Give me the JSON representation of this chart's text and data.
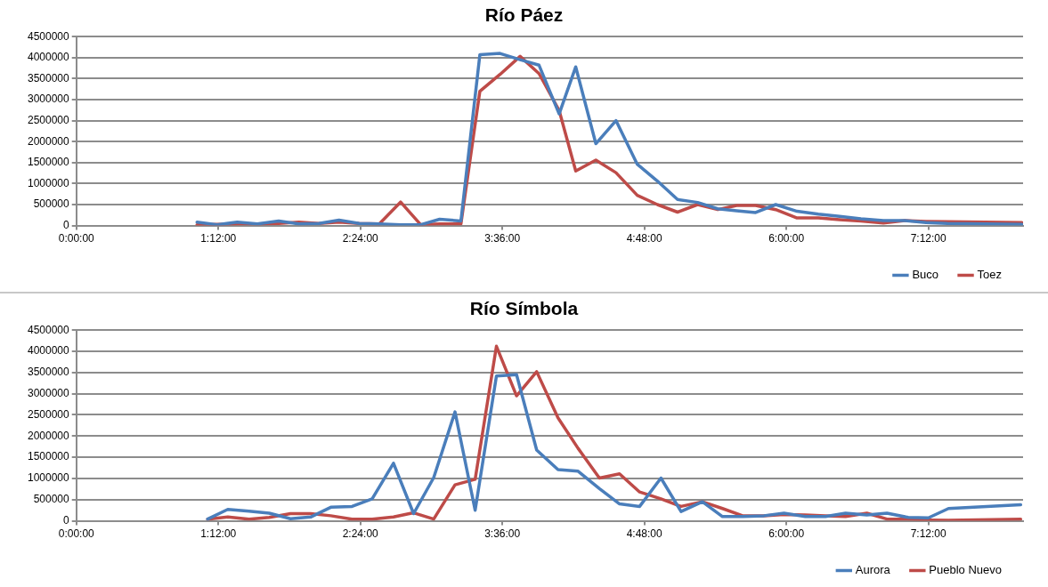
{
  "chart_data": [
    {
      "type": "line",
      "title": "Río Páez",
      "x": [
        1.02,
        1.19,
        1.36,
        1.53,
        1.71,
        1.88,
        2.05,
        2.22,
        2.39,
        2.56,
        2.74,
        2.91,
        3.07,
        3.25,
        3.41,
        3.58,
        3.75,
        3.91,
        4.08,
        4.22,
        4.39,
        4.56,
        4.74,
        4.91,
        5.08,
        5.25,
        5.42,
        5.58,
        5.74,
        5.91,
        6.09,
        6.27,
        6.45,
        6.63,
        6.82,
        7.0,
        7.18,
        7.36,
        7.99
      ],
      "series": [
        {
          "name": "Buco",
          "color": "#4a7ebb",
          "values": [
            80000,
            20000,
            80000,
            40000,
            110000,
            40000,
            50000,
            130000,
            50000,
            40000,
            20000,
            20000,
            150000,
            110000,
            4070000,
            4100000,
            3950000,
            3820000,
            2660000,
            3780000,
            1950000,
            2500000,
            1460000,
            1060000,
            620000,
            550000,
            400000,
            350000,
            310000,
            500000,
            340000,
            270000,
            220000,
            160000,
            120000,
            120000,
            70000,
            50000,
            30000
          ]
        },
        {
          "name": "Toez",
          "color": "#be4b48",
          "values": [
            20000,
            30000,
            40000,
            40000,
            50000,
            80000,
            50000,
            80000,
            50000,
            40000,
            560000,
            20000,
            40000,
            40000,
            3200000,
            3600000,
            4030000,
            3620000,
            2740000,
            1300000,
            1560000,
            1260000,
            720000,
            500000,
            320000,
            500000,
            380000,
            480000,
            480000,
            380000,
            180000,
            180000,
            140000,
            110000,
            60000,
            120000,
            100000,
            90000,
            70000
          ]
        }
      ],
      "xlim": [
        0,
        8
      ],
      "xticks": [
        {
          "value": 0,
          "label": "0:00:00"
        },
        {
          "value": 1.2,
          "label": "1:12:00"
        },
        {
          "value": 2.4,
          "label": "2:24:00"
        },
        {
          "value": 3.6,
          "label": "3:36:00"
        },
        {
          "value": 4.8,
          "label": "4:48:00"
        },
        {
          "value": 6,
          "label": "6:00:00"
        },
        {
          "value": 7.2,
          "label": "7:12:00"
        }
      ],
      "ylim": [
        0,
        4500000
      ],
      "yticks": [
        0,
        500000,
        1000000,
        1500000,
        2000000,
        2500000,
        3000000,
        3500000,
        4000000,
        4500000
      ],
      "grid": "y",
      "legend": "bottom right"
    },
    {
      "type": "line",
      "title": "Río Símbola",
      "x": [
        1.11,
        1.28,
        1.46,
        1.63,
        1.81,
        1.98,
        2.15,
        2.33,
        2.5,
        2.68,
        2.85,
        3.02,
        3.2,
        3.37,
        3.55,
        3.72,
        3.89,
        4.07,
        4.24,
        4.42,
        4.59,
        4.76,
        4.94,
        5.11,
        5.29,
        5.46,
        5.63,
        5.81,
        5.98,
        6.16,
        6.33,
        6.5,
        6.68,
        6.85,
        7.03,
        7.2,
        7.37,
        7.98
      ],
      "series": [
        {
          "name": "Aurora",
          "color": "#4a7ebb",
          "values": [
            40000,
            270000,
            230000,
            180000,
            50000,
            90000,
            320000,
            340000,
            520000,
            1360000,
            170000,
            1020000,
            2570000,
            250000,
            3420000,
            3450000,
            1670000,
            1210000,
            1170000,
            760000,
            400000,
            340000,
            1010000,
            220000,
            450000,
            100000,
            100000,
            120000,
            180000,
            100000,
            100000,
            180000,
            140000,
            180000,
            80000,
            70000,
            290000,
            380000
          ]
        },
        {
          "name": "Pueblo Nuevo",
          "color": "#be4b48",
          "values": [
            40000,
            90000,
            40000,
            80000,
            170000,
            170000,
            120000,
            40000,
            40000,
            90000,
            190000,
            40000,
            850000,
            980000,
            4120000,
            2950000,
            3520000,
            2430000,
            1710000,
            1010000,
            1110000,
            680000,
            520000,
            340000,
            450000,
            290000,
            120000,
            120000,
            150000,
            140000,
            120000,
            100000,
            180000,
            40000,
            40000,
            20000,
            10000,
            40000
          ]
        }
      ],
      "xlim": [
        0,
        8
      ],
      "xticks": [
        {
          "value": 0,
          "label": "0:00:00"
        },
        {
          "value": 1.2,
          "label": "1:12:00"
        },
        {
          "value": 2.4,
          "label": "2:24:00"
        },
        {
          "value": 3.6,
          "label": "3:36:00"
        },
        {
          "value": 4.8,
          "label": "4:48:00"
        },
        {
          "value": 6,
          "label": "6:00:00"
        },
        {
          "value": 7.2,
          "label": "7:12:00"
        }
      ],
      "ylim": [
        0,
        4500000
      ],
      "yticks": [
        0,
        500000,
        1000000,
        1500000,
        2000000,
        2500000,
        3000000,
        3500000,
        4000000,
        4500000
      ],
      "grid": "y",
      "legend": "bottom right"
    }
  ]
}
